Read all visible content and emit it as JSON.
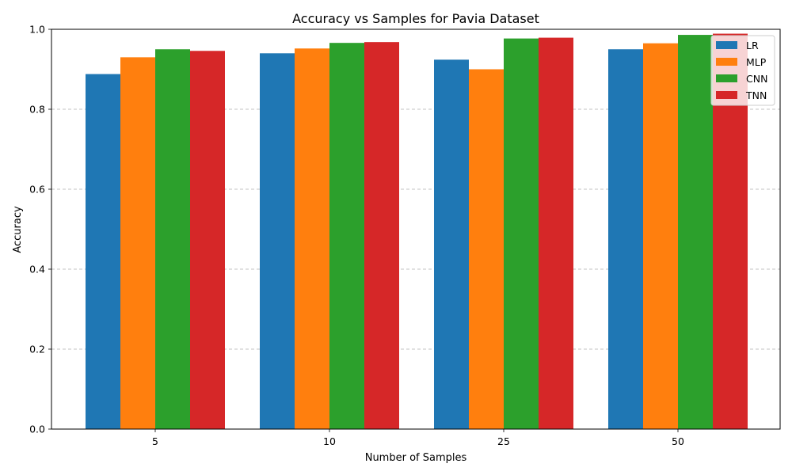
{
  "chart_data": {
    "type": "bar",
    "title": "Accuracy vs Samples for Pavia Dataset",
    "xlabel": "Number of Samples",
    "ylabel": "Accuracy",
    "categories": [
      "5",
      "10",
      "25",
      "50"
    ],
    "ylim": [
      0,
      1.0
    ],
    "yticks": [
      "0.0",
      "0.2",
      "0.4",
      "0.6",
      "0.8",
      "1.0"
    ],
    "grid": "y-dashed",
    "legend_position": "top-right",
    "series": [
      {
        "name": "LR",
        "color": "#1f77b4",
        "values": [
          0.888,
          0.94,
          0.924,
          0.95
        ]
      },
      {
        "name": "MLP",
        "color": "#ff7f0e",
        "values": [
          0.93,
          0.952,
          0.9,
          0.965
        ]
      },
      {
        "name": "CNN",
        "color": "#2ca02c",
        "values": [
          0.95,
          0.966,
          0.977,
          0.986
        ]
      },
      {
        "name": "TNN",
        "color": "#d62728",
        "values": [
          0.946,
          0.968,
          0.979,
          0.989
        ]
      }
    ]
  }
}
